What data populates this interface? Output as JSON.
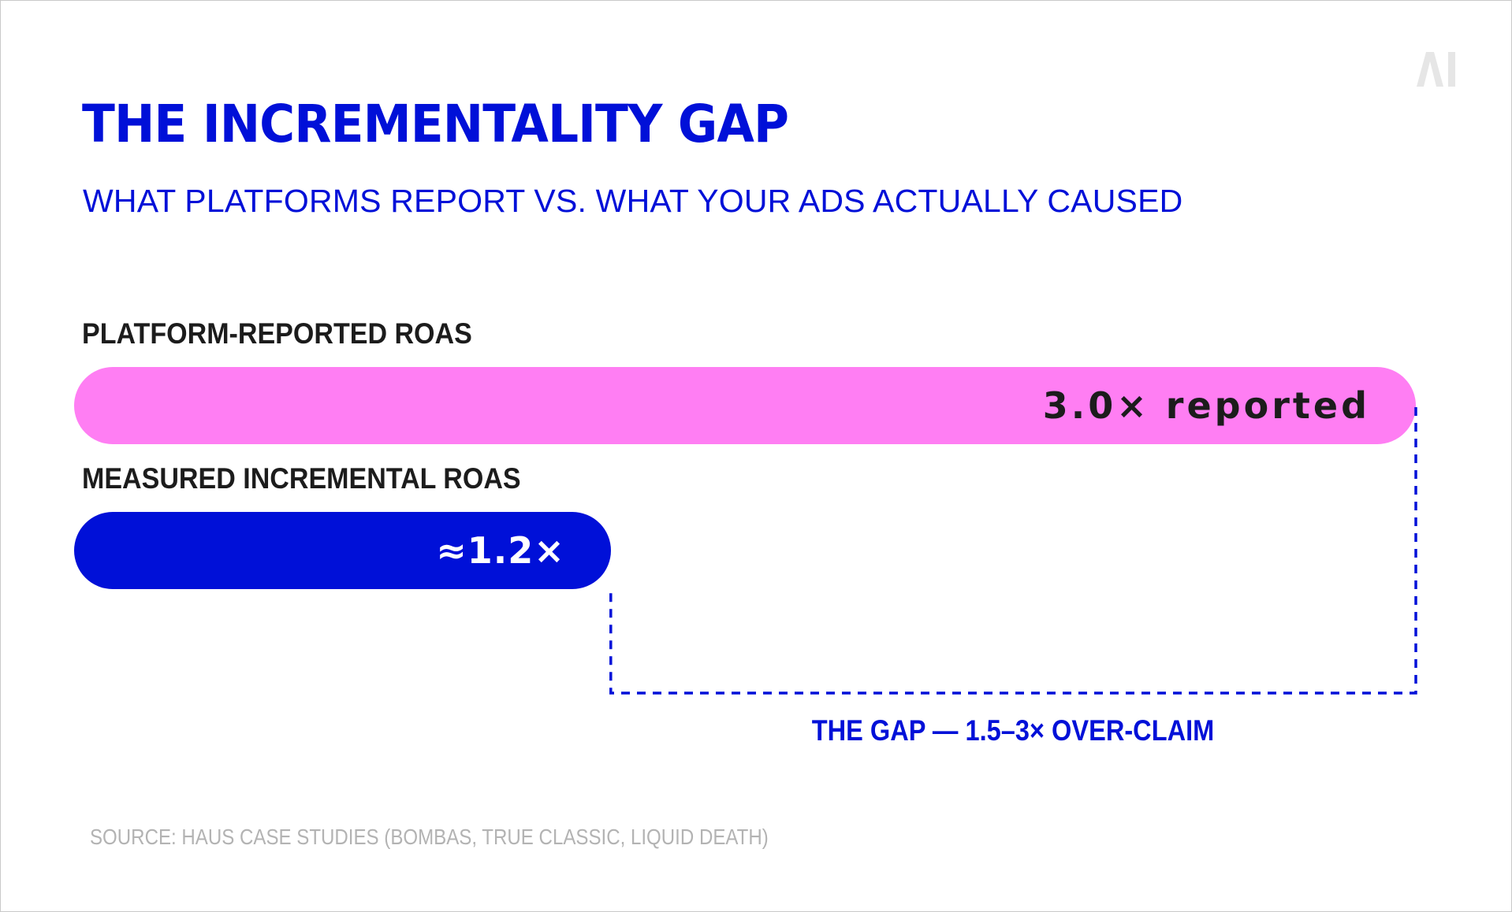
{
  "logo": {
    "text": "AI",
    "color": "#e6e6e6"
  },
  "colors": {
    "accent": "#0010d8",
    "reported_bar": "#ff7ef3",
    "incremental_bar": "#0010d8",
    "source_text": "#b3b3b3"
  },
  "chart_data": {
    "type": "bar",
    "orientation": "horizontal",
    "title": "THE INCREMENTALITY GAP",
    "subtitle": "WHAT PLATFORMS REPORT VS. WHAT YOUR ADS ACTUALLY CAUSED",
    "categories": [
      "PLATFORM-REPORTED ROAS",
      "MEASURED INCREMENTAL ROAS"
    ],
    "values": [
      3.0,
      1.2
    ],
    "data_labels": [
      "3.0× reported",
      "≈1.2×"
    ],
    "xlim": [
      0,
      3.0
    ],
    "grid": false,
    "annotation": {
      "text": "THE GAP — 1.5–3× OVER-CLAIM",
      "from_value": 1.2,
      "to_value": 3.0,
      "style": "dashed bracket"
    },
    "source": "SOURCE: HAUS CASE STUDIES (BOMBAS, TRUE CLASSIC, LIQUID DEATH)"
  }
}
